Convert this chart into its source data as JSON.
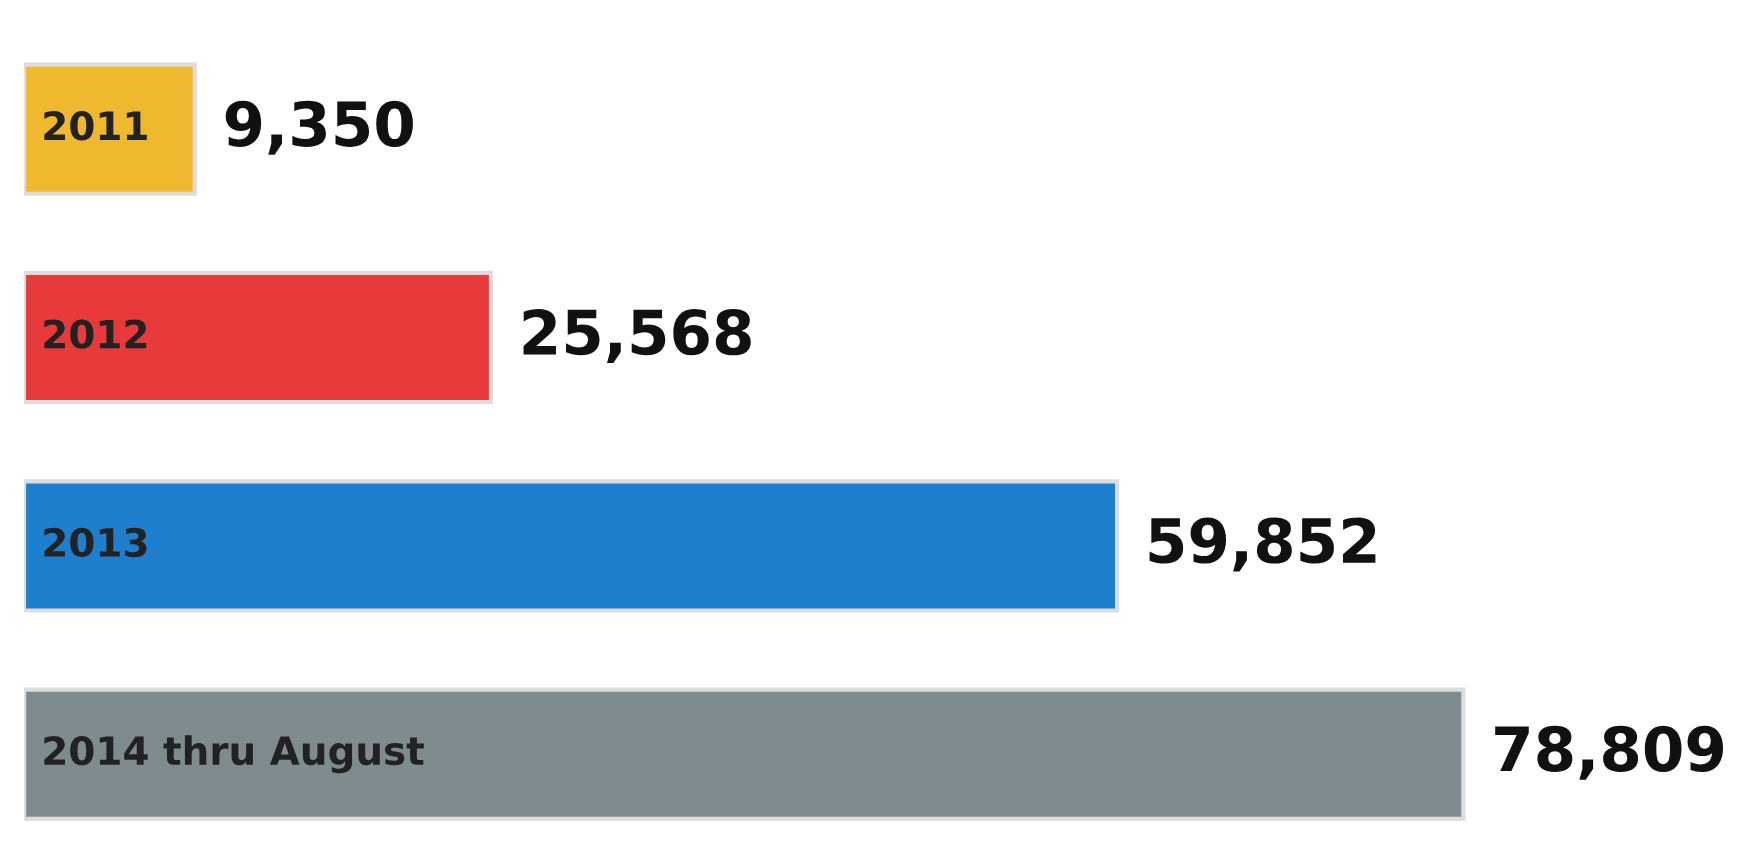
{
  "chart_data": {
    "type": "bar",
    "orientation": "horizontal",
    "categories": [
      "2011",
      "2012",
      "2013",
      "2014 thru August"
    ],
    "values": [
      9350,
      25568,
      59852,
      78809
    ],
    "value_labels": [
      "9,350",
      "25,568",
      "59,852",
      "78,809"
    ],
    "colors": [
      "#f0b82e",
      "#e83a3a",
      "#1f7fcf",
      "#7f8c8f"
    ],
    "legend": false
  }
}
